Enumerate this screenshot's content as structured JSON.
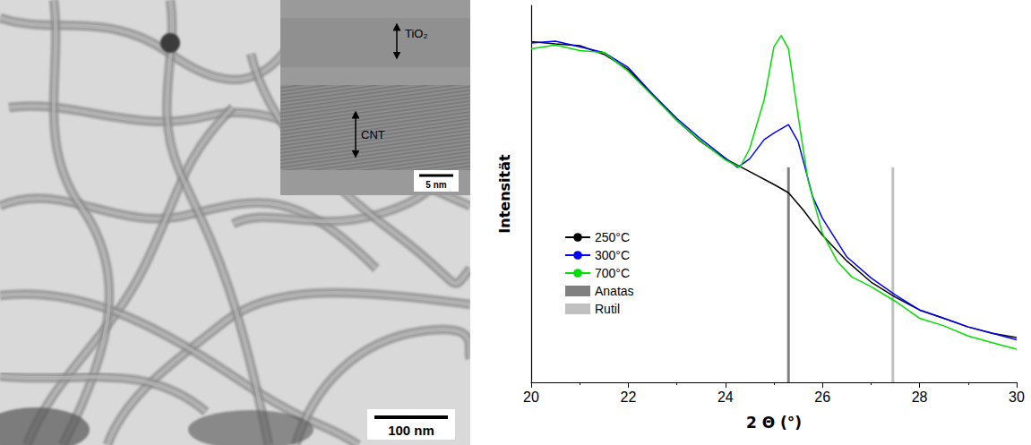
{
  "chart_data": {
    "type": "line",
    "xlabel": "2 Θ (°)",
    "ylabel": "Intensität",
    "xlim": [
      20,
      30
    ],
    "xticks": [
      20,
      22,
      24,
      26,
      28,
      30
    ],
    "ylim": [
      0,
      100
    ],
    "tick_labels": "x",
    "grid": false,
    "legend": "lower left",
    "series": [
      {
        "name": "250°C",
        "color": "#000000",
        "x": [
          20,
          20.5,
          21,
          21.5,
          22,
          22.5,
          23,
          23.5,
          24,
          24.5,
          25,
          25.3,
          25.6,
          26,
          26.5,
          27,
          27.5,
          28,
          28.5,
          29,
          29.5,
          30
        ],
        "values": [
          90.4,
          89.8,
          89.3,
          87,
          83,
          76.3,
          69.5,
          63.8,
          59.3,
          55.9,
          52.5,
          50.3,
          45.8,
          39,
          32.2,
          26.6,
          22.6,
          19.2,
          17,
          14.7,
          13,
          11.9
        ]
      },
      {
        "name": "300°C",
        "color": "#0000ff",
        "x": [
          20,
          20.5,
          21,
          21.5,
          22,
          22.5,
          23,
          23.5,
          24,
          24.25,
          24.5,
          24.8,
          25,
          25.3,
          25.5,
          25.8,
          26,
          26.5,
          27,
          27.5,
          28,
          28.5,
          29,
          29.5,
          30
        ],
        "values": [
          90,
          90.5,
          89,
          87.5,
          83.5,
          76.5,
          70,
          64.5,
          59.5,
          57,
          59.3,
          64.4,
          66.1,
          68.4,
          63.8,
          49.2,
          43.5,
          33.3,
          27.7,
          23.2,
          19.2,
          17,
          14.7,
          13,
          11.3
        ]
      },
      {
        "name": "700°C",
        "color": "#00e000",
        "x": [
          20,
          20.5,
          21,
          21.5,
          22,
          22.5,
          23,
          23.5,
          24,
          24.3,
          24.5,
          24.8,
          25,
          25.15,
          25.3,
          25.5,
          25.7,
          26,
          26.3,
          26.6,
          27,
          27.5,
          28,
          28.5,
          29,
          29.5,
          30
        ],
        "values": [
          88.5,
          89.5,
          88,
          87.5,
          82.5,
          76,
          69.5,
          64,
          59,
          57,
          62,
          75,
          89,
          92,
          88.5,
          70.6,
          53.7,
          39.5,
          32.2,
          28,
          25.4,
          21.5,
          17,
          15,
          12.3,
          10.5,
          8.8
        ]
      },
      {
        "name": "Anatas",
        "type": "bar",
        "color": "#808080",
        "x": [
          25.3
        ],
        "values": [
          57
        ]
      },
      {
        "name": "Rutil",
        "type": "bar",
        "color": "#c0c0c0",
        "x": [
          27.45
        ],
        "values": [
          57
        ]
      }
    ]
  },
  "micrograph": {
    "scale_bar": "100 nm",
    "inset": {
      "labels": [
        "TiO₂",
        "CNT"
      ],
      "scale_bar": "5 nm"
    }
  }
}
